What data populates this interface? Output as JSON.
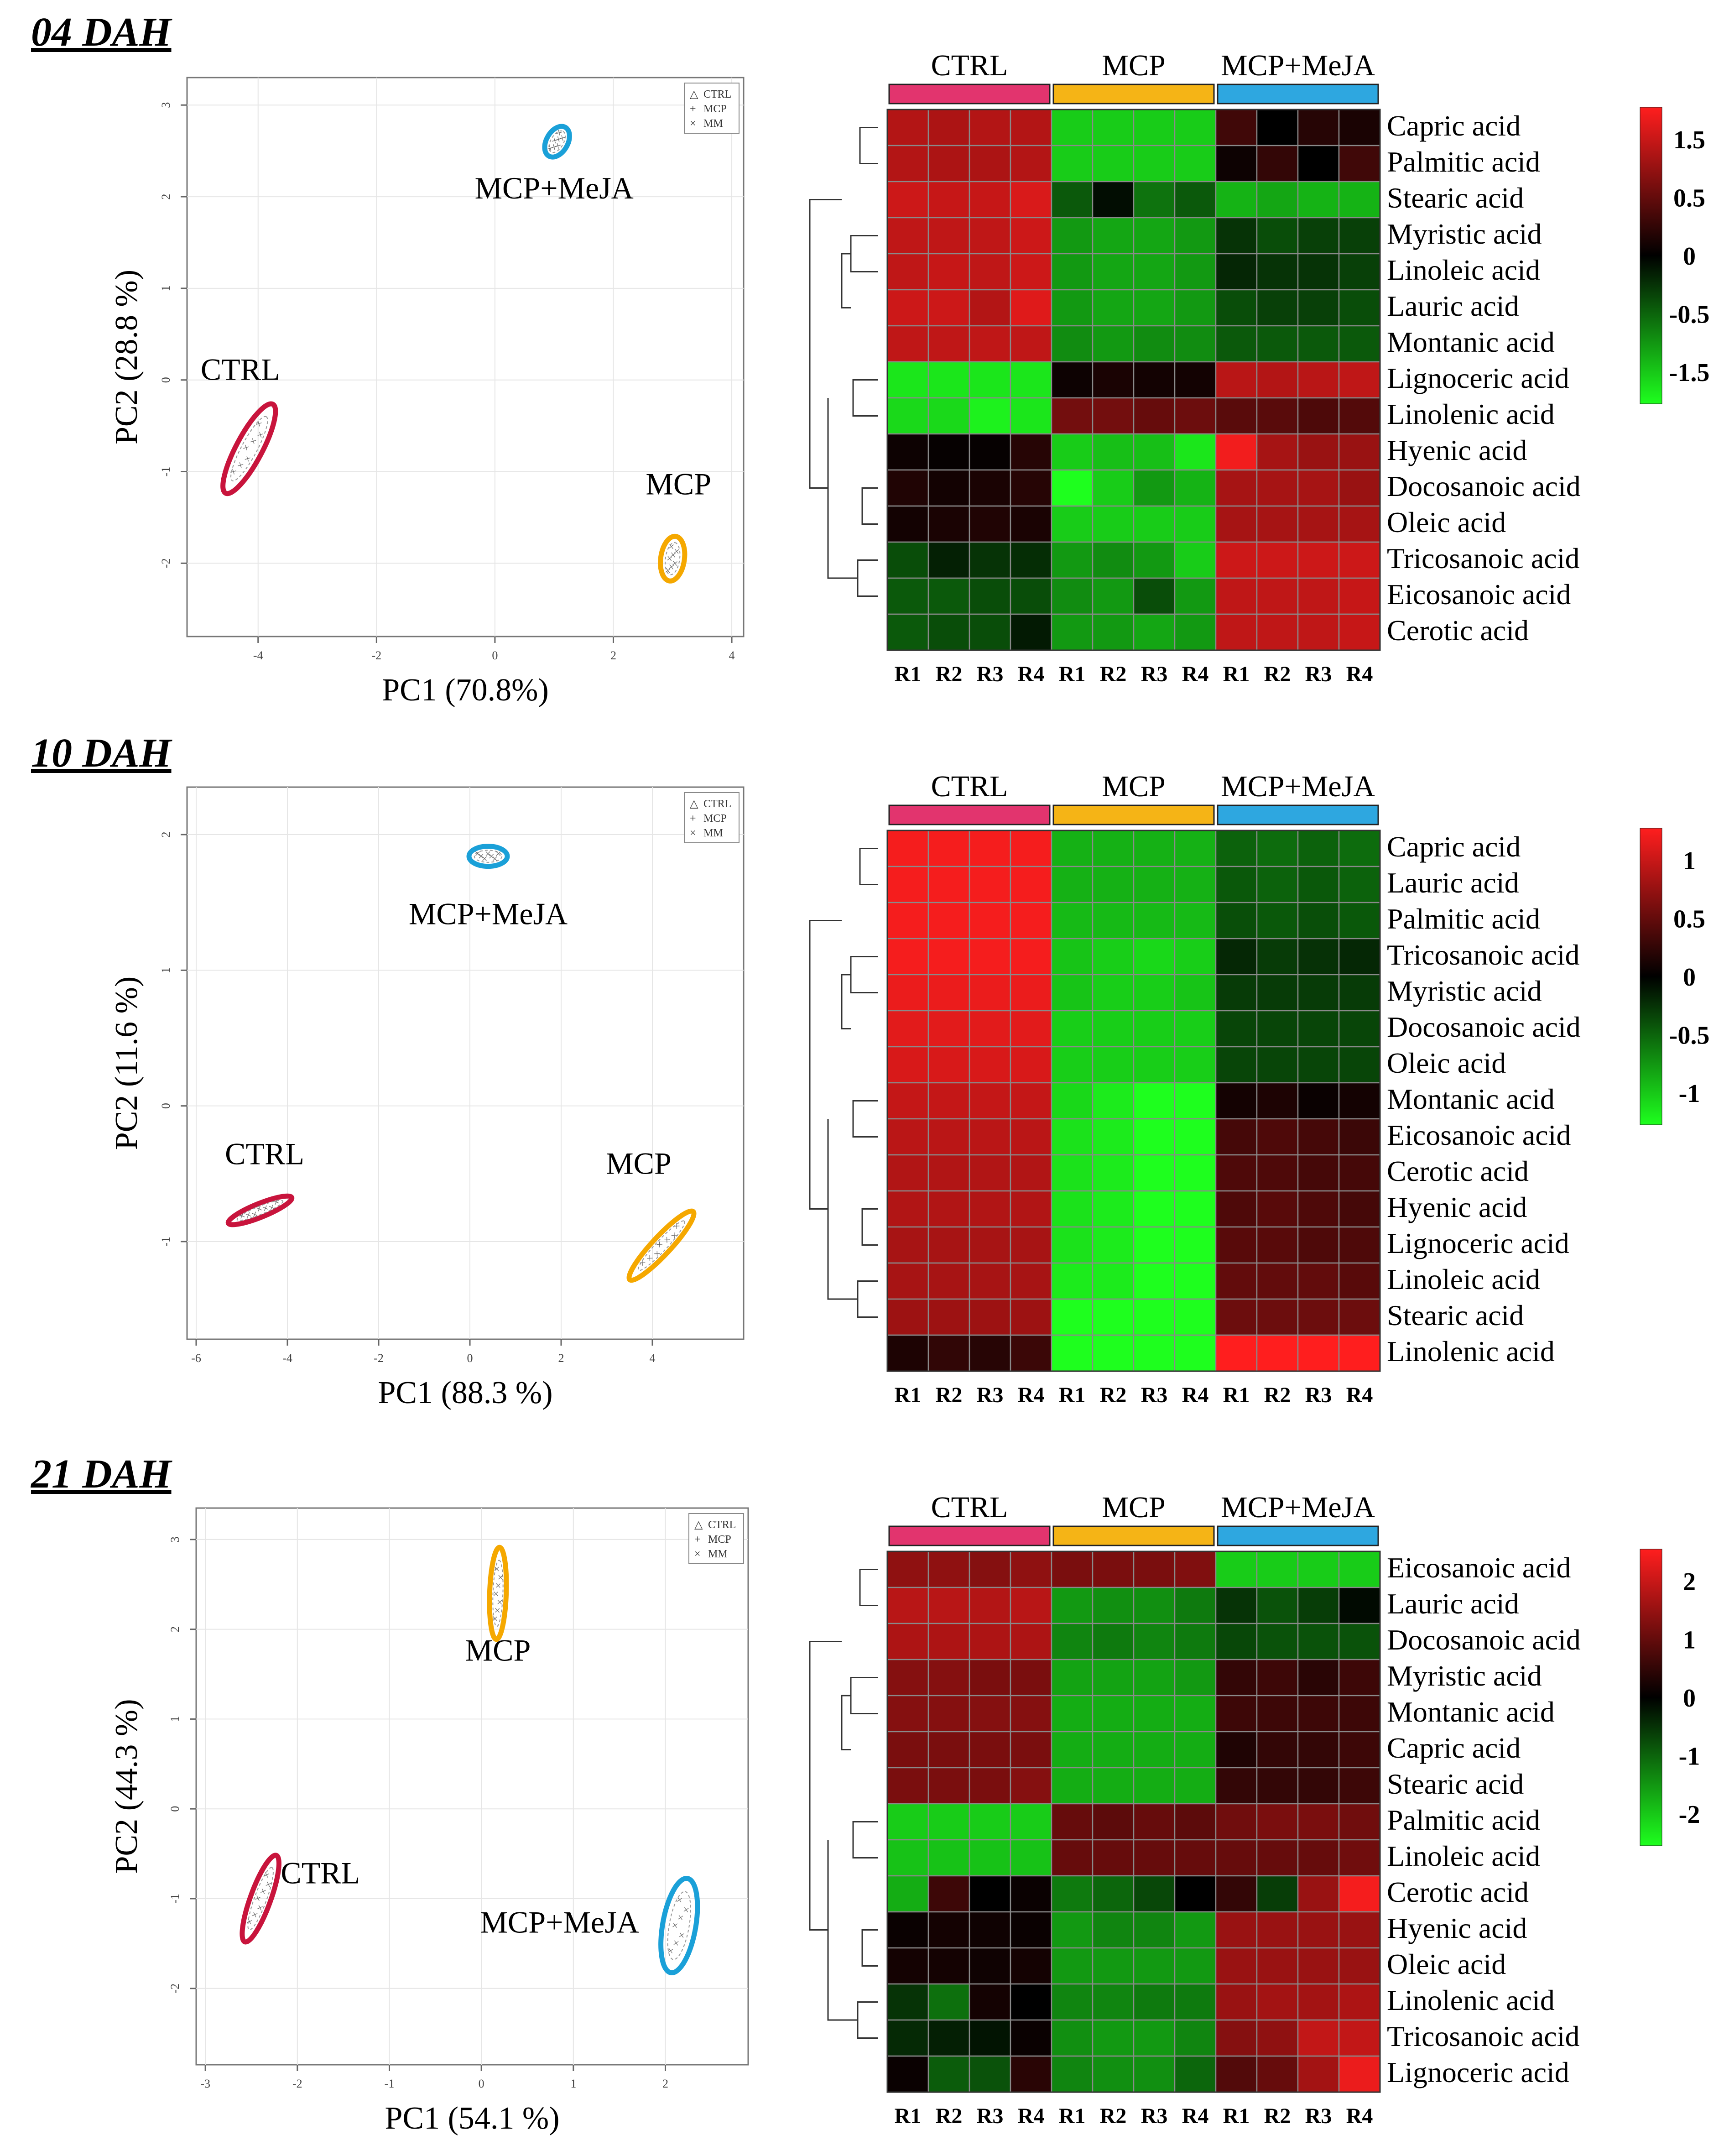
{
  "colors": {
    "ctrl": "#c8143c",
    "mcp": "#f5a800",
    "mcp_meja": "#1aa0d8",
    "bar_ctrl": "#e2346e",
    "bar_mcp": "#f5b416",
    "bar_meja": "#2ea7e0",
    "heat_high": "#ff1e1e",
    "heat_mid": "#000000",
    "heat_low": "#1eff1e"
  },
  "chart_data": [
    {
      "type": "pca_heatmap",
      "panel_title": "04 DAH",
      "pca": {
        "xlabel": "PC1  (70.8%)",
        "ylabel": "PC2  (28.8 %)",
        "xlim": [
          -5.2,
          4.2
        ],
        "ylim": [
          -2.8,
          3.3
        ],
        "xticks": [
          -4,
          -2,
          0,
          2,
          4
        ],
        "yticks": [
          -2,
          -1,
          0,
          1,
          2,
          3
        ],
        "legend": [
          "CTRL",
          "MCP",
          "MM"
        ],
        "groups": [
          {
            "label": "CTRL",
            "color_key": "ctrl",
            "cx": -4.15,
            "cy": -0.75,
            "rx": 0.85,
            "ry": 0.22,
            "angle": 62,
            "label_x": -4.3,
            "label_y": 0.0
          },
          {
            "label": "MCP",
            "color_key": "mcp",
            "cx": 3.0,
            "cy": -1.95,
            "rx": 0.38,
            "ry": 0.2,
            "angle": 82,
            "label_x": 3.1,
            "label_y": -1.25
          },
          {
            "label": "MCP+MeJA",
            "color_key": "mcp_meja",
            "cx": 1.05,
            "cy": 2.6,
            "rx": 0.28,
            "ry": 0.18,
            "angle": 60,
            "label_x": 1.0,
            "label_y": 1.98
          }
        ]
      },
      "heatmap": {
        "groups": [
          "CTRL",
          "MCP",
          "MCP+MeJA"
        ],
        "columns": [
          "R1",
          "R2",
          "R3",
          "R4",
          "R1",
          "R2",
          "R3",
          "R4",
          "R1",
          "R2",
          "R3",
          "R4"
        ],
        "rows": [
          "Capric acid",
          "Palmitic acid",
          "Stearic acid",
          "Myristic acid",
          "Linoleic acid",
          "Lauric acid",
          "Montanic acid",
          "Lignoceric  acid",
          "Linolenic acid",
          "Hyenic acid",
          "Docosanoic acid",
          "Oleic acid",
          "Tricosanoic acid",
          "Eicosanoic acid",
          "Cerotic acid"
        ],
        "values": [
          [
            1.4,
            1.35,
            1.4,
            1.4,
            -1.6,
            -1.6,
            -1.6,
            -1.6,
            0.5,
            0.0,
            0.3,
            0.2
          ],
          [
            1.4,
            1.35,
            1.35,
            1.4,
            -1.6,
            -1.6,
            -1.6,
            -1.6,
            0.1,
            0.4,
            0.0,
            0.5
          ],
          [
            1.6,
            1.55,
            1.55,
            1.7,
            -0.7,
            -0.1,
            -0.9,
            -0.7,
            -1.4,
            -1.3,
            -1.4,
            -1.4
          ],
          [
            1.5,
            1.5,
            1.5,
            1.6,
            -1.2,
            -1.3,
            -1.3,
            -1.2,
            -0.4,
            -0.6,
            -0.5,
            -0.5
          ],
          [
            1.5,
            1.55,
            1.5,
            1.6,
            -1.2,
            -1.3,
            -1.3,
            -1.2,
            -0.3,
            -0.4,
            -0.4,
            -0.5
          ],
          [
            1.6,
            1.6,
            1.4,
            1.75,
            -1.2,
            -1.3,
            -1.3,
            -1.2,
            -0.6,
            -0.5,
            -0.5,
            -0.6
          ],
          [
            1.5,
            1.5,
            1.5,
            1.5,
            -1.1,
            -1.2,
            -1.1,
            -1.1,
            -0.7,
            -0.7,
            -0.7,
            -0.7
          ],
          [
            -1.8,
            -1.8,
            -1.8,
            -1.8,
            0.1,
            0.2,
            0.15,
            0.15,
            1.45,
            1.4,
            1.45,
            1.5
          ],
          [
            -1.7,
            -1.7,
            -1.9,
            -1.8,
            0.9,
            0.9,
            0.8,
            0.85,
            0.7,
            0.7,
            0.6,
            0.65
          ],
          [
            0.1,
            0.05,
            0.05,
            0.3,
            -1.6,
            -1.5,
            -1.5,
            -1.8,
            1.9,
            1.3,
            1.2,
            1.2
          ],
          [
            0.25,
            0.15,
            0.2,
            0.3,
            -2.0,
            -1.6,
            -1.2,
            -1.4,
            1.3,
            1.3,
            1.3,
            1.2
          ],
          [
            0.15,
            0.2,
            0.25,
            0.2,
            -1.6,
            -1.6,
            -1.6,
            -1.6,
            1.3,
            1.3,
            1.3,
            1.3
          ],
          [
            -0.6,
            -0.25,
            -0.4,
            -0.35,
            -1.2,
            -1.1,
            -1.2,
            -1.6,
            1.6,
            1.6,
            1.6,
            1.6
          ],
          [
            -0.7,
            -0.7,
            -0.6,
            -0.6,
            -1.1,
            -1.2,
            -0.6,
            -1.2,
            1.5,
            1.5,
            1.5,
            1.55
          ],
          [
            -0.7,
            -0.6,
            -0.6,
            -0.2,
            -1.2,
            -1.2,
            -1.3,
            -1.2,
            1.5,
            1.5,
            1.5,
            1.55
          ]
        ],
        "color_range": [
          -2.0,
          2.0
        ],
        "scale_labels": [
          "1.5",
          "0.5",
          "0",
          "-0.5",
          "-1.5"
        ]
      }
    },
    {
      "type": "pca_heatmap",
      "panel_title": "10 DAH",
      "pca": {
        "xlabel": "PC1 (88.3  %)",
        "ylabel": "PC2  (11.6 %)",
        "xlim": [
          -6.2,
          6.0
        ],
        "ylim": [
          -1.72,
          2.35
        ],
        "xticks": [
          -6,
          -4,
          -2,
          0,
          2,
          4
        ],
        "yticks": [
          -1,
          0,
          1,
          2
        ],
        "legend": [
          "CTRL",
          "MCP",
          "MM"
        ],
        "groups": [
          {
            "label": "CTRL",
            "color_key": "ctrl",
            "cx": -4.6,
            "cy": -0.77,
            "rx": 0.75,
            "ry": 0.15,
            "angle": 22,
            "label_x": -4.5,
            "label_y": -0.43
          },
          {
            "label": "MCP",
            "color_key": "mcp",
            "cx": 4.2,
            "cy": -1.03,
            "rx": 1.02,
            "ry": 0.2,
            "angle": 47,
            "label_x": 3.7,
            "label_y": -0.5
          },
          {
            "label": "MCP+MeJA",
            "color_key": "mcp_meja",
            "cx": 0.4,
            "cy": 1.84,
            "rx": 0.42,
            "ry": 0.22,
            "angle": 0,
            "label_x": 0.4,
            "label_y": 1.34
          }
        ]
      },
      "heatmap": {
        "groups": [
          "CTRL",
          "MCP",
          "MCP+MeJA"
        ],
        "columns": [
          "R1",
          "R2",
          "R3",
          "R4",
          "R1",
          "R2",
          "R3",
          "R4",
          "R1",
          "R2",
          "R3",
          "R4"
        ],
        "rows": [
          "Capric acid",
          "Lauric acid",
          "Palmitic acid",
          "Tricosanoic acid",
          "Myristic acid",
          "Docosanoic acid",
          "Oleic acid",
          "Montanic acid",
          "Eicosanoic acid",
          "Cerotic acid",
          "Hyenic acid",
          "Lignoceric  acid",
          "Linoleic acid",
          "Stearic acid",
          "Linolenic acid"
        ],
        "values": [
          [
            1.25,
            1.25,
            1.25,
            1.25,
            -0.9,
            -0.9,
            -0.9,
            -0.9,
            -0.5,
            -0.55,
            -0.5,
            -0.55
          ],
          [
            1.25,
            1.25,
            1.25,
            1.25,
            -0.9,
            -0.9,
            -0.9,
            -0.9,
            -0.45,
            -0.5,
            -0.45,
            -0.5
          ],
          [
            1.25,
            1.25,
            1.25,
            1.25,
            -0.95,
            -0.95,
            -0.95,
            -0.95,
            -0.4,
            -0.45,
            -0.4,
            -0.45
          ],
          [
            1.25,
            1.25,
            1.25,
            1.25,
            -1.0,
            -1.05,
            -1.1,
            -1.05,
            -0.2,
            -0.3,
            -0.25,
            -0.2
          ],
          [
            1.2,
            1.2,
            1.2,
            1.2,
            -1.0,
            -1.05,
            -1.05,
            -1.0,
            -0.3,
            -0.3,
            -0.3,
            -0.3
          ],
          [
            1.15,
            1.15,
            1.15,
            1.15,
            -1.05,
            -1.05,
            -1.05,
            -1.05,
            -0.35,
            -0.35,
            -0.35,
            -0.35
          ],
          [
            1.1,
            1.1,
            1.1,
            1.1,
            -1.05,
            -1.05,
            -1.05,
            -1.05,
            -0.35,
            -0.35,
            -0.35,
            -0.35
          ],
          [
            1.0,
            1.0,
            1.0,
            1.0,
            -1.1,
            -1.2,
            -1.3,
            -1.3,
            0.1,
            0.15,
            0.05,
            0.1
          ],
          [
            0.95,
            0.95,
            0.95,
            0.95,
            -1.15,
            -1.2,
            -1.3,
            -1.3,
            0.35,
            0.4,
            0.35,
            0.3
          ],
          [
            0.9,
            0.9,
            0.9,
            0.9,
            -1.15,
            -1.2,
            -1.3,
            -1.3,
            0.4,
            0.4,
            0.35,
            0.35
          ],
          [
            0.9,
            0.9,
            0.9,
            0.9,
            -1.15,
            -1.2,
            -1.3,
            -1.3,
            0.4,
            0.45,
            0.4,
            0.35
          ],
          [
            0.85,
            0.85,
            0.85,
            0.85,
            -1.15,
            -1.2,
            -1.3,
            -1.3,
            0.45,
            0.45,
            0.4,
            0.4
          ],
          [
            0.85,
            0.85,
            0.85,
            0.85,
            -1.2,
            -1.2,
            -1.3,
            -1.3,
            0.5,
            0.5,
            0.5,
            0.45
          ],
          [
            0.8,
            0.8,
            0.8,
            0.8,
            -1.3,
            -1.3,
            -1.3,
            -1.3,
            0.55,
            0.55,
            0.55,
            0.55
          ],
          [
            0.15,
            0.25,
            0.2,
            0.3,
            -1.3,
            -1.3,
            -1.3,
            -1.3,
            1.3,
            1.3,
            1.3,
            1.3
          ]
        ],
        "color_range": [
          -1.3,
          1.3
        ],
        "scale_labels": [
          "1",
          "0.5",
          "0",
          "-0.5",
          "-1"
        ]
      }
    },
    {
      "type": "pca_heatmap",
      "panel_title": "21 DAH",
      "pca": {
        "xlabel": "PC1 (54.1  %)",
        "ylabel": "PC2  (44.3  %)",
        "xlim": [
          -3.1,
          2.9
        ],
        "ylim": [
          -2.85,
          3.35
        ],
        "xticks": [
          -3,
          -2,
          -1,
          0,
          1,
          2
        ],
        "yticks": [
          -2,
          -1,
          0,
          1,
          2,
          3
        ],
        "legend": [
          "CTRL",
          "MCP",
          "MM"
        ],
        "groups": [
          {
            "label": "CTRL",
            "color_key": "ctrl",
            "cx": -2.4,
            "cy": -1.0,
            "rx": 0.5,
            "ry": 0.11,
            "angle": 70,
            "label_x": -1.75,
            "label_y": -0.83
          },
          {
            "label": "MCP",
            "color_key": "mcp",
            "cx": 0.18,
            "cy": 2.4,
            "rx": 0.5,
            "ry": 0.09,
            "angle": 88,
            "label_x": 0.18,
            "label_y": 1.65
          },
          {
            "label": "MCP+MeJA",
            "color_key": "mcp_meja",
            "cx": 2.15,
            "cy": -1.3,
            "rx": 0.52,
            "ry": 0.18,
            "angle": 80,
            "label_x": 0.85,
            "label_y": -1.38
          }
        ]
      },
      "heatmap": {
        "groups": [
          "CTRL",
          "MCP",
          "MCP+MeJA"
        ],
        "columns": [
          "R1",
          "R2",
          "R3",
          "R4",
          "R1",
          "R2",
          "R3",
          "R4",
          "R1",
          "R2",
          "R3",
          "R4"
        ],
        "rows": [
          "Eicosanoic acid",
          "Lauric acid",
          "Docosanoic acid",
          "Myristic acid",
          "Montanic acid",
          "Capric acid",
          "Stearic acid",
          "Palmitic acid",
          "Linoleic acid",
          "Cerotic acid",
          "Hyenic acid",
          "Oleic acid",
          "Linolenic acid",
          "Tricosanoic acid",
          "Lignoceric acid"
        ],
        "values": [
          [
            1.4,
            1.4,
            1.3,
            1.4,
            1.2,
            1.2,
            1.2,
            1.25,
            -2.0,
            -2.0,
            -2.0,
            -2.0
          ],
          [
            1.8,
            1.8,
            1.75,
            1.8,
            -1.5,
            -1.4,
            -1.4,
            -1.2,
            -0.5,
            -0.8,
            -0.6,
            -0.1
          ],
          [
            1.7,
            1.7,
            1.7,
            1.7,
            -1.3,
            -1.2,
            -1.3,
            -1.2,
            -0.7,
            -0.8,
            -0.8,
            -0.8
          ],
          [
            1.3,
            1.3,
            1.2,
            1.2,
            -1.6,
            -1.6,
            -1.6,
            -1.5,
            0.5,
            0.6,
            0.4,
            0.6
          ],
          [
            1.3,
            1.3,
            1.3,
            1.3,
            -1.7,
            -1.7,
            -1.7,
            -1.7,
            0.6,
            0.6,
            0.6,
            0.6
          ],
          [
            1.2,
            1.2,
            1.2,
            1.2,
            -1.7,
            -1.7,
            -1.7,
            -1.7,
            0.3,
            0.5,
            0.5,
            0.6
          ],
          [
            1.2,
            1.2,
            1.2,
            1.3,
            -1.7,
            -1.7,
            -1.7,
            -1.7,
            0.5,
            0.5,
            0.5,
            0.6
          ],
          [
            -2.0,
            -2.0,
            -2.0,
            -2.0,
            1.0,
            0.9,
            1.0,
            0.9,
            1.1,
            1.2,
            1.2,
            1.1
          ],
          [
            -1.9,
            -1.9,
            -1.9,
            -1.9,
            1.0,
            1.0,
            1.0,
            1.0,
            1.0,
            1.0,
            1.0,
            1.1
          ],
          [
            -1.7,
            0.6,
            0.0,
            0.1,
            -1.2,
            -1.0,
            -0.7,
            0.0,
            0.5,
            -0.6,
            1.5,
            2.4
          ],
          [
            0.1,
            0.2,
            0.15,
            0.1,
            -1.5,
            -1.3,
            -1.3,
            -1.5,
            1.5,
            1.5,
            1.5,
            1.5
          ],
          [
            0.2,
            0.2,
            0.15,
            0.2,
            -1.5,
            -1.5,
            -1.5,
            -1.5,
            1.5,
            1.5,
            1.5,
            1.5
          ],
          [
            -0.5,
            -1.1,
            0.2,
            0.0,
            -1.3,
            -1.3,
            -1.2,
            -1.2,
            1.5,
            1.6,
            1.6,
            1.7
          ],
          [
            -0.4,
            -0.3,
            -0.2,
            0.1,
            -1.4,
            -1.5,
            -1.5,
            -1.3,
            1.3,
            1.4,
            1.9,
            1.9
          ],
          [
            0.1,
            -0.9,
            -0.8,
            0.4,
            -1.3,
            -1.4,
            -1.4,
            -1.0,
            0.8,
            1.0,
            1.6,
            2.3
          ]
        ],
        "color_range": [
          -2.5,
          2.5
        ],
        "scale_labels": [
          "2",
          "1",
          "0",
          "-1",
          "-2"
        ]
      }
    }
  ]
}
